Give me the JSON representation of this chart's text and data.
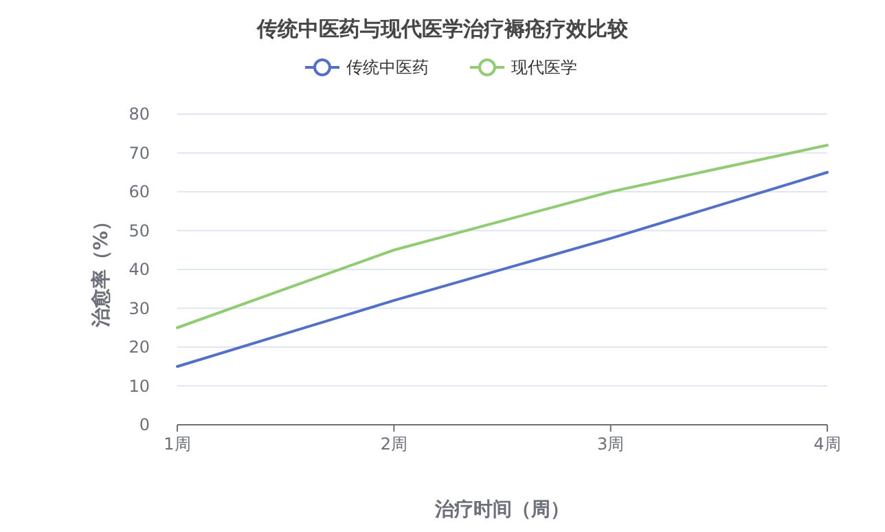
{
  "chart_data": {
    "type": "line",
    "title": "传统中医药与现代医学治疗褥疮疗效比较",
    "xlabel": "治疗时间（周）",
    "ylabel": "治愈率（%）",
    "categories": [
      "1周",
      "2周",
      "3周",
      "4周"
    ],
    "series": [
      {
        "name": "传统中医药",
        "color": "#5470c6",
        "values": [
          15,
          32,
          48,
          65
        ]
      },
      {
        "name": "现代医学",
        "color": "#91cc75",
        "values": [
          25,
          45,
          60,
          72
        ]
      }
    ],
    "ylim": [
      0,
      80
    ],
    "yticks": [
      0,
      10,
      20,
      30,
      40,
      50,
      60,
      70,
      80
    ],
    "grid": "y",
    "legend": "top",
    "marker": "none",
    "line_style": "solid"
  }
}
